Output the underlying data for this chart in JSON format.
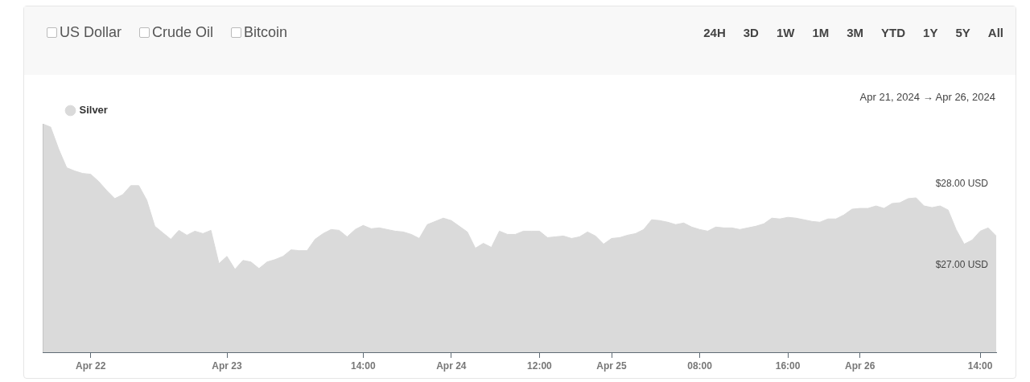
{
  "chart_data": {
    "type": "area",
    "subtitle": "Apr 21, 2024 → Apr 26, 2024",
    "annotations": [
      "US Dollar",
      "Crude Oil",
      "Bitcoin",
      "24H",
      "3D",
      "1W",
      "1M",
      "3M",
      "YTD",
      "1Y",
      "5Y",
      "All"
    ],
    "categories": [
      null,
      null,
      null,
      null,
      null,
      null,
      "Apr 22",
      null,
      null,
      null,
      null,
      null,
      null,
      null,
      null,
      null,
      null,
      null,
      null,
      null,
      null,
      null,
      null,
      "Apr 23",
      null,
      null,
      null,
      null,
      null,
      null,
      null,
      null,
      null,
      null,
      null,
      null,
      null,
      null,
      null,
      null,
      "14:00",
      null,
      null,
      null,
      null,
      null,
      null,
      null,
      null,
      null,
      null,
      "Apr 24",
      null,
      null,
      null,
      null,
      null,
      null,
      null,
      null,
      null,
      null,
      "12:00",
      null,
      null,
      null,
      null,
      null,
      null,
      null,
      null,
      "Apr 25",
      null,
      null,
      null,
      null,
      null,
      null,
      null,
      null,
      null,
      null,
      "08:00",
      null,
      null,
      null,
      null,
      null,
      null,
      null,
      null,
      null,
      null,
      "16:00",
      null,
      null,
      null,
      null,
      null,
      null,
      null,
      null,
      "Apr 26",
      null,
      null,
      null,
      null,
      null,
      null,
      null,
      null,
      null,
      null,
      null,
      null,
      null,
      null,
      "14:00",
      null,
      null
    ],
    "series": [
      {
        "name": "Silver",
        "color": "#dadada",
        "values": [
          28.74,
          28.7,
          28.43,
          28.2,
          28.16,
          28.13,
          28.12,
          28.03,
          27.92,
          27.82,
          27.87,
          27.98,
          27.98,
          27.8,
          27.48,
          27.4,
          27.32,
          27.43,
          27.37,
          27.42,
          27.39,
          27.43,
          27.02,
          27.11,
          26.95,
          27.06,
          27.04,
          26.96,
          27.04,
          27.07,
          27.11,
          27.19,
          27.18,
          27.18,
          27.32,
          27.39,
          27.44,
          27.43,
          27.35,
          27.44,
          27.49,
          27.45,
          27.46,
          27.44,
          27.42,
          27.41,
          27.38,
          27.33,
          27.5,
          27.54,
          27.58,
          27.55,
          27.48,
          27.41,
          27.21,
          27.27,
          27.22,
          27.42,
          27.38,
          27.38,
          27.42,
          27.42,
          27.42,
          27.34,
          27.35,
          27.36,
          27.33,
          27.35,
          27.41,
          27.36,
          27.26,
          27.33,
          27.34,
          27.37,
          27.39,
          27.44,
          27.56,
          27.55,
          27.53,
          27.5,
          27.52,
          27.47,
          27.44,
          27.42,
          27.47,
          27.46,
          27.46,
          27.44,
          27.46,
          27.48,
          27.51,
          27.58,
          27.57,
          27.59,
          27.58,
          27.56,
          27.54,
          27.53,
          27.57,
          27.57,
          27.62,
          27.69,
          27.7,
          27.7,
          27.73,
          27.7,
          27.76,
          27.77,
          27.82,
          27.83,
          27.73,
          27.71,
          27.73,
          27.68,
          27.44,
          27.26,
          27.31,
          27.42,
          27.46,
          27.36
        ]
      }
    ],
    "ylim": [
      25.93,
      28.74
    ],
    "yticks": [
      {
        "value": 27,
        "label": "$27.00 USD"
      },
      {
        "value": 28,
        "label": "$28.00 USD"
      }
    ],
    "grid": false,
    "legend": "top left",
    "marker": "none"
  }
}
